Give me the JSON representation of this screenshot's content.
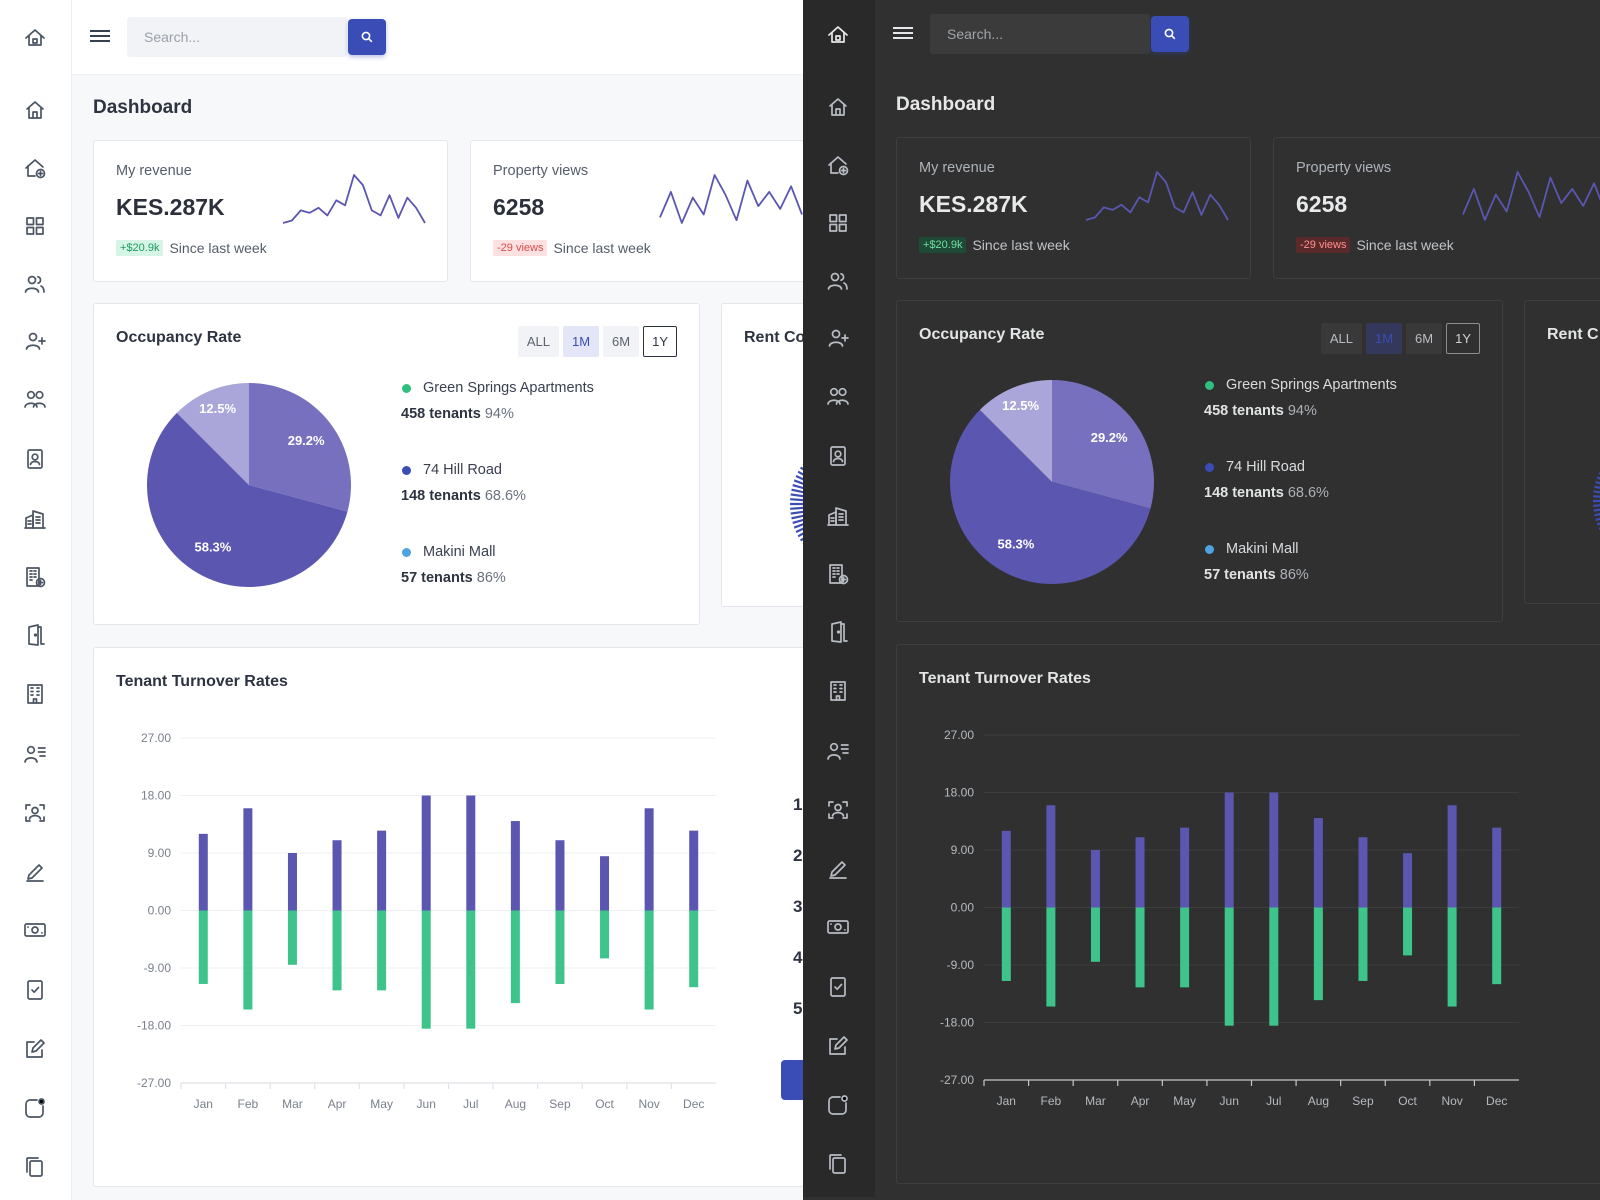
{
  "search": {
    "placeholder": "Search..."
  },
  "page_title": "Dashboard",
  "sidebar_icons": [
    "logo-house-icon",
    "home-icon",
    "add-property-icon",
    "grid-icon",
    "users-icon",
    "add-user-icon",
    "group-icon",
    "contact-card-icon",
    "buildings-icon",
    "add-building-icon",
    "door-icon",
    "office-building-icon",
    "user-list-icon",
    "user-frame-icon",
    "pen-icon",
    "money-icon",
    "checklist-icon",
    "edit-icon",
    "notification-icon",
    "copy-icon"
  ],
  "stats": [
    {
      "label": "My revenue",
      "value": "KES.287K",
      "badge": "+$20.9k",
      "badge_type": "up",
      "note": "Since last week",
      "spark": [
        3,
        4,
        8,
        7,
        9,
        6,
        12,
        10,
        22,
        18,
        8,
        6,
        14,
        5,
        13,
        9,
        3
      ]
    },
    {
      "label": "Property views",
      "value": "6258",
      "badge": "-29 views",
      "badge_type": "down",
      "note": "Since last week",
      "spark": [
        5,
        14,
        3,
        12,
        6,
        20,
        13,
        4,
        18,
        9,
        14,
        8,
        16,
        6
      ]
    }
  ],
  "occupancy": {
    "title": "Occupancy Rate",
    "ranges": [
      "ALL",
      "1M",
      "6M",
      "1Y"
    ],
    "slices": [
      {
        "label": "29.2%",
        "value": 29.2,
        "color": "#7770bf"
      },
      {
        "label": "58.3%",
        "value": 58.3,
        "color": "#5b56b0"
      },
      {
        "label": "12.5%",
        "value": 12.5,
        "color": "#aba6da"
      }
    ],
    "legend": [
      {
        "name": "Green Springs Apartments",
        "tenants": "458 tenants",
        "percent": "94%",
        "color": "#2fbf7f"
      },
      {
        "name": "74 Hill Road",
        "tenants": "148 tenants",
        "percent": "68.6%",
        "color": "#3a4db7"
      },
      {
        "name": "Makini Mall",
        "tenants": "57 tenants",
        "percent": "86%",
        "color": "#4fa3e0"
      }
    ]
  },
  "rent_card": {
    "title": "Rent Co"
  },
  "rent_card_dark": {
    "title": "Rent C"
  },
  "side_numbers": [
    "1",
    "2",
    "3",
    "4",
    "5"
  ],
  "chart_data": {
    "type": "bar",
    "title": "Tenant Turnover Rates",
    "categories": [
      "Jan",
      "Feb",
      "Mar",
      "Apr",
      "May",
      "Jun",
      "Jul",
      "Aug",
      "Sep",
      "Oct",
      "Nov",
      "Dec"
    ],
    "series": [
      {
        "values": [
          12,
          16,
          9,
          11,
          12.5,
          18,
          18,
          14,
          11,
          8.5,
          16,
          12.5
        ],
        "color": "#5b56b0"
      },
      {
        "values": [
          -11.5,
          -15.5,
          -8.5,
          -12.5,
          -12.5,
          -18.5,
          -18.5,
          -14.5,
          -11.5,
          -7.5,
          -15.5,
          -12
        ],
        "color": "#3ec48b"
      }
    ],
    "ylim": [
      -27,
      27
    ],
    "yticks": [
      "27.00",
      "18.00",
      "9.00",
      "0.00",
      "-9.00",
      "-18.00",
      "-27.00"
    ]
  }
}
